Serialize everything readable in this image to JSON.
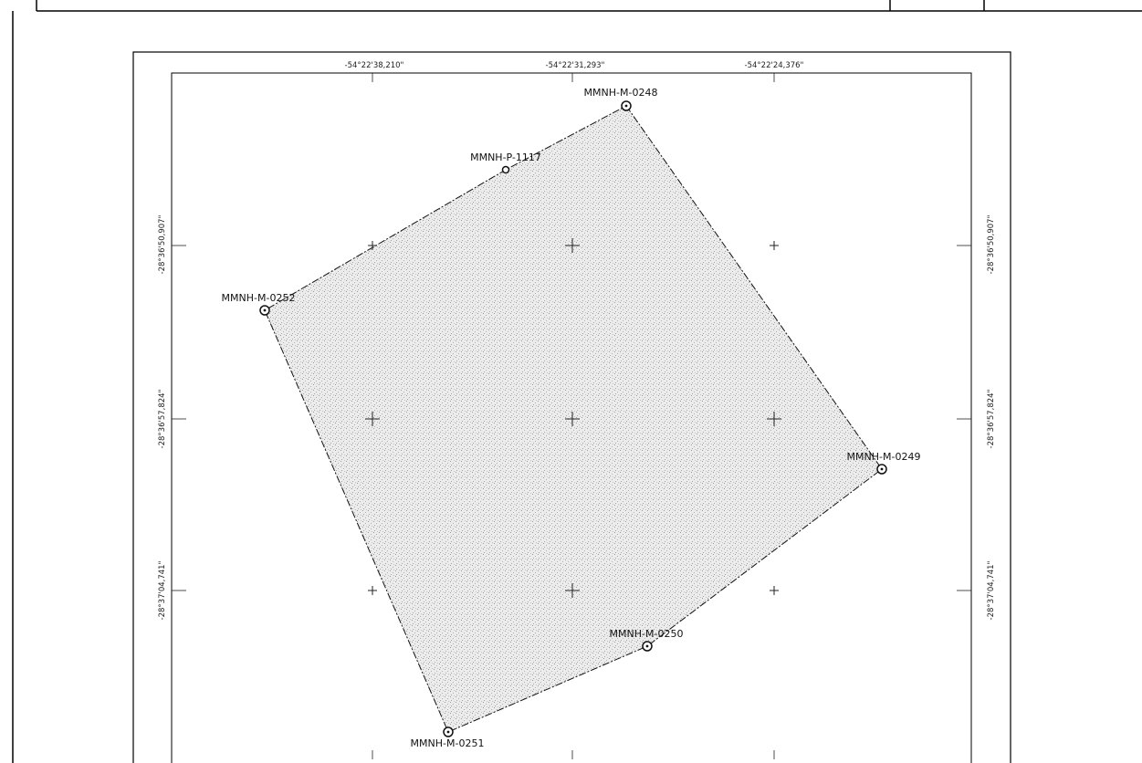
{
  "map": {
    "coords_top": [
      "-54°22'38,210\"",
      "-54°22'31,293\"",
      "-54°22'24,376\""
    ],
    "coords_left": [
      "-28°36'50,907\"",
      "-28°36'57,824\"",
      "-28°37'04,741\""
    ],
    "coords_right": [
      "-28°36'50,907\"",
      "-28°36'57,824\"",
      "-28°37'04,741\""
    ],
    "markers": [
      {
        "id": "MMNH-M-0248",
        "type": "M"
      },
      {
        "id": "MMNH-P-1117",
        "type": "P"
      },
      {
        "id": "MMNH-M-0252",
        "type": "M"
      },
      {
        "id": "MMNH-M-0249",
        "type": "M"
      },
      {
        "id": "MMNH-M-0250",
        "type": "M"
      },
      {
        "id": "MMNH-M-0251",
        "type": "M"
      }
    ],
    "colors": {
      "line": "#111111",
      "area_fill": "#dcdcdc",
      "speckle": "#9a9a9a"
    }
  }
}
